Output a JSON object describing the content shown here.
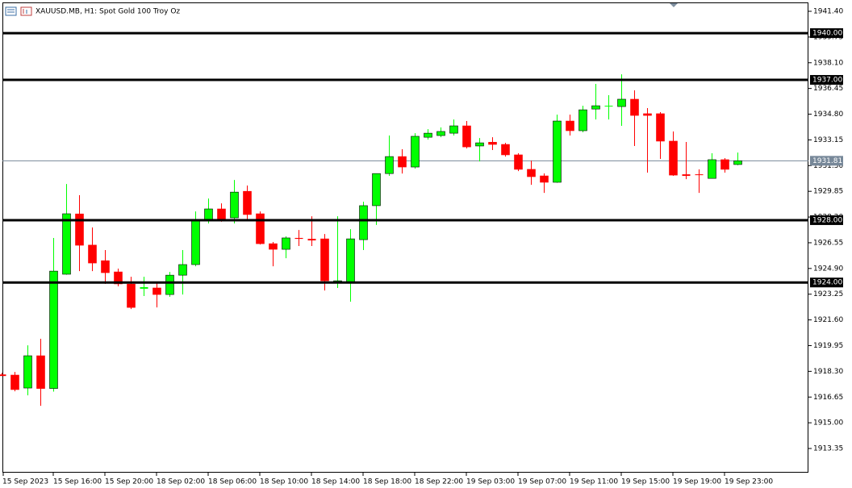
{
  "chart_data": {
    "type": "candlestick",
    "title": "XAUUSD.MB, H1:  Spot Gold 100 Troy Oz",
    "up_color": "#00ff00",
    "down_color": "#ff0000",
    "grid": false,
    "ylim": [
      1911.85,
      1941.97
    ],
    "yticks": [
      {
        "value": 1941.4,
        "label": "1941.40"
      },
      {
        "value": 1939.75,
        "label": "1939.75"
      },
      {
        "value": 1938.1,
        "label": "1938.10"
      },
      {
        "value": 1936.45,
        "label": "1936.45"
      },
      {
        "value": 1934.8,
        "label": "1934.80"
      },
      {
        "value": 1933.15,
        "label": "1933.15"
      },
      {
        "value": 1931.5,
        "label": "1931.50"
      },
      {
        "value": 1929.85,
        "label": "1929.85"
      },
      {
        "value": 1928.2,
        "label": "1928.20"
      },
      {
        "value": 1926.55,
        "label": "1926.55"
      },
      {
        "value": 1924.9,
        "label": "1924.90"
      },
      {
        "value": 1923.25,
        "label": "1923.25"
      },
      {
        "value": 1921.6,
        "label": "1921.60"
      },
      {
        "value": 1919.95,
        "label": "1919.95"
      },
      {
        "value": 1918.3,
        "label": "1918.30"
      },
      {
        "value": 1916.65,
        "label": "1916.65"
      },
      {
        "value": 1915,
        "label": "1915.00"
      },
      {
        "value": 1913.35,
        "label": "1913.35"
      }
    ],
    "levels": [
      {
        "value": 1940,
        "label": "1940.00"
      },
      {
        "value": 1937,
        "label": "1937.00"
      },
      {
        "value": 1928,
        "label": "1928.00"
      },
      {
        "value": 1924,
        "label": "1924.00"
      }
    ],
    "current_price": {
      "value": 1931.81,
      "label": "1931.81"
    },
    "categories": [
      "15 Sep 2023",
      null,
      null,
      null,
      "15 Sep 16:00",
      null,
      null,
      null,
      "15 Sep 20:00",
      null,
      null,
      null,
      "18 Sep 02:00",
      null,
      null,
      null,
      "18 Sep 06:00",
      null,
      null,
      null,
      "18 Sep 10:00",
      null,
      null,
      null,
      "18 Sep 14:00",
      null,
      null,
      null,
      "18 Sep 18:00",
      null,
      null,
      null,
      "18 Sep 22:00",
      null,
      null,
      null,
      "19 Sep 03:00",
      null,
      null,
      null,
      "19 Sep 07:00",
      null,
      null,
      null,
      "19 Sep 11:00",
      null,
      null,
      null,
      "19 Sep 15:00",
      null,
      null,
      null,
      "19 Sep 19:00",
      null,
      null,
      null,
      "19 Sep 23:00",
      null
    ],
    "open": [
      1918.1,
      1918.06,
      1917.23,
      1919.3,
      1917.2,
      1924.53,
      1928.4,
      1926.4,
      1925.4,
      1924.68,
      1923.9,
      1923.6,
      1923.65,
      1923.23,
      1924.47,
      1925.15,
      1928.05,
      1928.72,
      1928.15,
      1929.85,
      1928.41,
      1926.49,
      1926.13,
      1926.86,
      1926.8,
      1926.8,
      1924.0,
      1924.0,
      1926.75,
      1928.93,
      1930.99,
      1932.08,
      1931.41,
      1933.32,
      1933.43,
      1933.58,
      1934.05,
      1932.76,
      1933.0,
      1932.86,
      1932.19,
      1931.26,
      1930.84,
      1930.43,
      1934.36,
      1933.74,
      1935.13,
      1935.3,
      1935.29,
      1935.76,
      1934.83,
      1934.83,
      1933.07,
      1930.94,
      1930.94,
      1930.68,
      1931.88,
      1931.57
    ],
    "high": [
      1918.2,
      1918.26,
      1919.97,
      1920.39,
      1926.86,
      1930.32,
      1929.6,
      1927.53,
      1926.08,
      1924.89,
      1924.37,
      1924.37,
      1923.96,
      1924.68,
      1926.08,
      1928.56,
      1929.39,
      1929.08,
      1930.58,
      1930.22,
      1928.56,
      1926.6,
      1926.96,
      1927.37,
      1928.25,
      1927.11,
      1928.25,
      1927.42,
      1929.18,
      1931.0,
      1933.43,
      1932.55,
      1933.58,
      1933.84,
      1933.95,
      1934.46,
      1934.36,
      1933.27,
      1933.32,
      1932.96,
      1932.29,
      1931.82,
      1931.0,
      1934.77,
      1934.77,
      1935.34,
      1936.74,
      1936.02,
      1937.36,
      1936.33,
      1935.19,
      1934.93,
      1933.69,
      1933.02,
      1931.26,
      1932.29,
      1931.98,
      1932.34
    ],
    "low": [
      1918.0,
      1917.02,
      1916.76,
      1916.09,
      1917.0,
      1924.5,
      1924.73,
      1924.73,
      1923.91,
      1923.75,
      1922.3,
      1923.13,
      1922.4,
      1923.08,
      1923.23,
      1925.04,
      1927.79,
      1927.9,
      1927.79,
      1928.05,
      1926.44,
      1925.04,
      1925.56,
      1926.34,
      1926.34,
      1923.49,
      1923.65,
      1922.77,
      1926.08,
      1927.69,
      1930.84,
      1930.99,
      1931.31,
      1933.17,
      1933.32,
      1933.43,
      1932.6,
      1931.77,
      1932.5,
      1932.08,
      1931.15,
      1930.27,
      1929.75,
      1930.4,
      1933.43,
      1933.64,
      1934.46,
      1934.46,
      1934.05,
      1932.76,
      1931.05,
      1931.93,
      1930.84,
      1930.63,
      1929.75,
      1930.68,
      1931.05,
      1931.52
    ],
    "close": [
      1918.0,
      1917.13,
      1919.3,
      1917.2,
      1924.73,
      1928.41,
      1926.39,
      1925.25,
      1924.63,
      1923.91,
      1922.4,
      1923.7,
      1923.23,
      1924.47,
      1925.15,
      1928.05,
      1928.72,
      1928.05,
      1929.8,
      1928.36,
      1926.49,
      1926.13,
      1926.86,
      1926.8,
      1926.7,
      1924.11,
      1924.11,
      1926.8,
      1928.93,
      1930.99,
      1932.08,
      1931.41,
      1933.38,
      1933.58,
      1933.69,
      1934.05,
      1932.7,
      1932.96,
      1932.86,
      1932.19,
      1931.26,
      1930.79,
      1930.43,
      1934.36,
      1933.74,
      1935.08,
      1935.34,
      1935.34,
      1935.76,
      1934.72,
      1934.72,
      1933.07,
      1930.89,
      1930.84,
      1930.89,
      1931.88,
      1931.26,
      1931.81
    ]
  }
}
